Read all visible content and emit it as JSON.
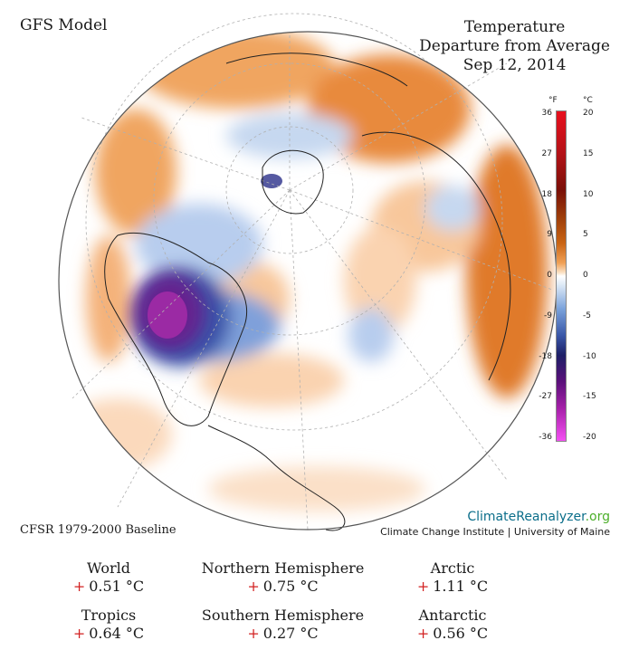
{
  "header": {
    "model_label": "GFS Model",
    "title_lines": [
      "Temperature",
      "Departure from Average",
      "Sep 12, 2014"
    ]
  },
  "colorbar": {
    "unit_f": "°F",
    "unit_c": "°C",
    "ticks_f": [
      "36",
      "27",
      "18",
      "9",
      "0",
      "-9",
      "-18",
      "-27",
      "-36"
    ],
    "ticks_c": [
      "20",
      "15",
      "10",
      "5",
      "0",
      "-5",
      "-10",
      "-15",
      "-20"
    ]
  },
  "footer": {
    "baseline": "CFSR 1979-2000 Baseline",
    "brand_part1": "ClimateReanalyzer",
    "brand_part2": ".org",
    "institute": "Climate Change Institute | University of Maine"
  },
  "stats": [
    {
      "region": "World",
      "sign": "+",
      "value": "0.51 °C"
    },
    {
      "region": "Northern Hemisphere",
      "sign": "+",
      "value": "0.75 °C"
    },
    {
      "region": "Arctic",
      "sign": "+",
      "value": "1.11 °C"
    },
    {
      "region": "Tropics",
      "sign": "+",
      "value": "0.64 °C"
    },
    {
      "region": "Southern Hemisphere",
      "sign": "+",
      "value": "0.27 °C"
    },
    {
      "region": "Antarctic",
      "sign": "+",
      "value": "0.56 °C"
    }
  ]
}
